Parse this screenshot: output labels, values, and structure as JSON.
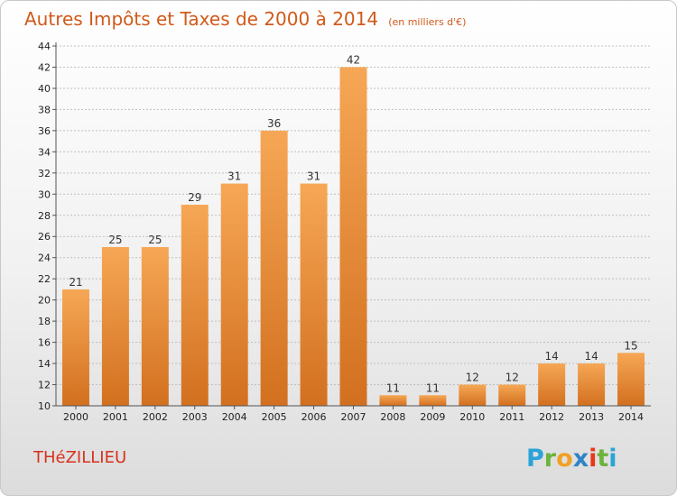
{
  "header": {
    "title": "Autres Impôts et Taxes de 2000 à 2014",
    "unit": "(en milliers d'€)"
  },
  "footer": {
    "commune": "THéZILLIEU"
  },
  "logo": {
    "letters": [
      "P",
      "r",
      "o",
      "x",
      "i",
      "t",
      "i"
    ],
    "colors": [
      "#2aa3d8",
      "#6cb33e",
      "#f2a024",
      "#2f83c7",
      "#e8391a",
      "#6cb33e",
      "#2aa3d8"
    ]
  },
  "colors": {
    "bar_light": "#f6a755",
    "bar_dark": "#d2701f",
    "grid": "#bfbfbf",
    "axis": "#555555"
  },
  "chart_data": {
    "type": "bar",
    "title": "Autres Impôts et Taxes de 2000 à 2014",
    "subtitle": "(en milliers d'€)",
    "categories": [
      "2000",
      "2001",
      "2002",
      "2003",
      "2004",
      "2005",
      "2006",
      "2007",
      "2008",
      "2009",
      "2010",
      "2011",
      "2012",
      "2013",
      "2014"
    ],
    "values": [
      21,
      25,
      25,
      29,
      31,
      36,
      31,
      42,
      11,
      11,
      12,
      12,
      14,
      14,
      15
    ],
    "ylim": [
      10,
      44
    ],
    "yticks": [
      10,
      12,
      14,
      16,
      18,
      20,
      22,
      24,
      26,
      28,
      30,
      32,
      34,
      36,
      38,
      40,
      42,
      44
    ],
    "grid": true,
    "xlabel": "",
    "ylabel": ""
  }
}
